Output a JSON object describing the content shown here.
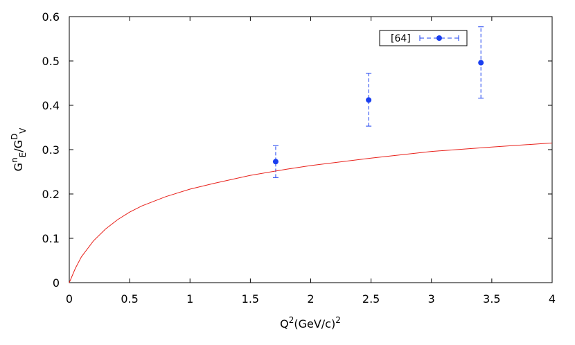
{
  "chart_data": {
    "type": "scatter",
    "xlabel": {
      "base": "Q",
      "sup": "2",
      "mid": "(GeV/c)",
      "sup2": "2"
    },
    "ylabel": {
      "a": "G",
      "a_sup": "n",
      "a_sub": "E",
      "slash": "/G",
      "b_sup": "D",
      "b_sub": "V"
    },
    "xlim": [
      0,
      4
    ],
    "ylim": [
      0,
      0.6
    ],
    "xticks": [
      0,
      0.5,
      1,
      1.5,
      2,
      2.5,
      3,
      3.5,
      4
    ],
    "xtick_labels": [
      "0",
      "0.5",
      "1",
      "1.5",
      "2",
      "2.5",
      "3",
      "3.5",
      "4"
    ],
    "yticks": [
      0,
      0.1,
      0.2,
      0.3,
      0.4,
      0.5,
      0.6
    ],
    "ytick_labels": [
      "0",
      "0.1",
      "0.2",
      "0.3",
      "0.4",
      "0.5",
      "0.6"
    ],
    "grid": false,
    "legend": {
      "placement": "top-right",
      "entries": [
        "[64]"
      ]
    },
    "series": [
      {
        "name": "[64]",
        "kind": "points-with-errorbars",
        "color": "#1a3ff0",
        "x": [
          1.71,
          2.48,
          3.41
        ],
        "y": [
          0.273,
          0.412,
          0.496
        ],
        "y_low": [
          0.237,
          0.353,
          0.416
        ],
        "y_high": [
          0.309,
          0.472,
          0.577
        ]
      },
      {
        "kind": "line",
        "color": "#e8201a",
        "x": [
          0,
          0.05,
          0.1,
          0.2,
          0.3,
          0.4,
          0.5,
          0.6,
          0.8,
          1.0,
          1.2,
          1.5,
          1.8,
          2.0,
          2.5,
          3.0,
          3.5,
          4.0
        ],
        "y": [
          0,
          0.032,
          0.058,
          0.094,
          0.121,
          0.142,
          0.159,
          0.173,
          0.194,
          0.211,
          0.224,
          0.242,
          0.256,
          0.264,
          0.281,
          0.296,
          0.306,
          0.315
        ]
      }
    ]
  }
}
